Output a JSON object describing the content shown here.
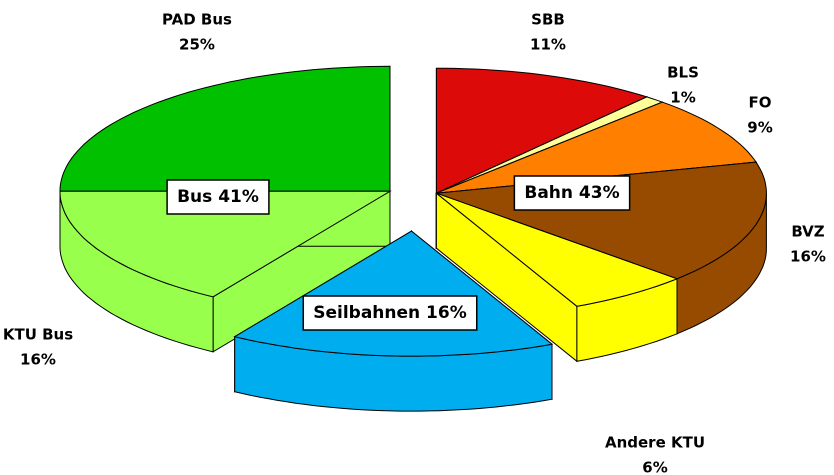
{
  "chart_data": {
    "type": "pie",
    "groups": [
      {
        "label": "Bahn 43%",
        "categories": [
          "SBB",
          "BLS",
          "FO",
          "BVZ",
          "Andere KTU"
        ],
        "values": [
          11,
          1,
          9,
          16,
          6
        ],
        "value_labels": [
          "11%",
          "1%",
          "9%",
          "16%",
          "6%"
        ],
        "colors": [
          "#dd0a0a",
          "#ffff99",
          "#ff8000",
          "#964b00",
          "#ffff00"
        ]
      },
      {
        "label": "Seilbahnen 16%",
        "categories": [
          null
        ],
        "values": [
          16
        ],
        "value_labels": [
          null
        ],
        "colors": [
          "#00aeef"
        ]
      },
      {
        "label": "Bus 41%",
        "categories": [
          "KTU Bus",
          "PAD Bus"
        ],
        "values": [
          16,
          25
        ],
        "value_labels": [
          "16%",
          "25%"
        ],
        "colors": [
          "#99ff4d",
          "#00c000"
        ]
      }
    ]
  }
}
